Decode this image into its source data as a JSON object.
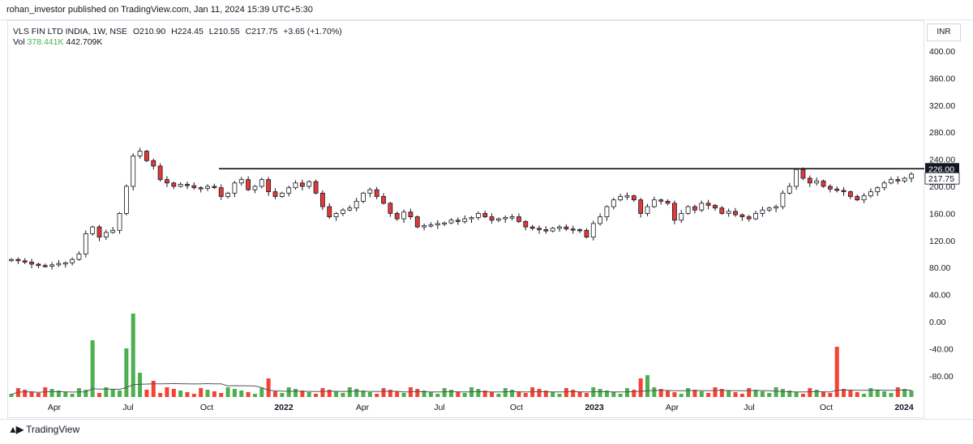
{
  "header": {
    "publisher": "rohan_investor published on TradingView.com, Jan 11, 2024 15:39 UTC+5:30"
  },
  "legend": {
    "symbol": "VLS FIN LTD INDIA, 1W, NSE",
    "open": "O210.90",
    "high": "H224.45",
    "low": "L210.55",
    "close": "C217.75",
    "change": "+3.65 (+1.70%)",
    "vol_label": "Vol",
    "vol_value": "378.441K",
    "vol_ma": "442.709K"
  },
  "currency": "INR",
  "footer": {
    "brand": "TradingView",
    "logo_icon": "tradingview-logo-icon"
  },
  "chart_data": {
    "type": "candlestick",
    "timeframe": "1W",
    "y_axis_ticks": [
      "400.00",
      "360.00",
      "320.00",
      "280.00",
      "240.00",
      "200.00",
      "160.00",
      "120.00",
      "80.00",
      "40.00",
      "0.00",
      "-40.00",
      "-80.00"
    ],
    "y_tick_values": [
      400,
      360,
      320,
      280,
      240,
      200,
      160,
      120,
      80,
      40,
      0,
      -40,
      -80
    ],
    "x_axis_ticks": [
      "Apr",
      "Jul",
      "Oct",
      "2022",
      "Apr",
      "Jul",
      "Oct",
      "2023",
      "Apr",
      "Jul",
      "Oct",
      "2024"
    ],
    "bold_x_ticks": [
      "2022",
      "2023",
      "2024"
    ],
    "price_labels": [
      {
        "label": "226.00",
        "value": 226,
        "style": "line"
      },
      {
        "label": "217.75",
        "value": 217.75,
        "style": "last"
      }
    ],
    "horizontal_line": 226,
    "colors": {
      "up": "#ffffff",
      "down": "#e53935",
      "wick": "#131722",
      "vol_up": "#4caf50",
      "vol_down": "#f44336",
      "ma": "#555555",
      "last_price_bg": "#ffffff"
    },
    "closes": [
      92,
      90,
      88,
      85,
      83,
      82,
      84,
      86,
      87,
      92,
      100,
      130,
      140,
      125,
      132,
      135,
      160,
      200,
      245,
      252,
      238,
      230,
      210,
      205,
      200,
      203,
      201,
      198,
      197,
      200,
      198,
      185,
      190,
      205,
      210,
      195,
      200,
      210,
      192,
      185,
      190,
      198,
      205,
      200,
      207,
      190,
      170,
      155,
      160,
      165,
      168,
      178,
      190,
      195,
      185,
      175,
      160,
      152,
      162,
      155,
      140,
      142,
      143,
      145,
      146,
      150,
      148,
      152,
      154,
      160,
      155,
      150,
      152,
      154,
      155,
      148,
      140,
      138,
      136,
      134,
      138,
      140,
      137,
      136,
      135,
      125,
      145,
      155,
      170,
      180,
      185,
      186,
      180,
      160,
      170,
      180,
      178,
      175,
      150,
      160,
      170,
      165,
      175,
      172,
      168,
      160,
      163,
      158,
      155,
      152,
      160,
      165,
      168,
      170,
      190,
      200,
      225,
      212,
      205,
      208,
      200,
      196,
      194,
      192,
      185,
      180,
      186,
      192,
      198,
      205,
      210,
      208,
      212,
      218
    ]
  }
}
